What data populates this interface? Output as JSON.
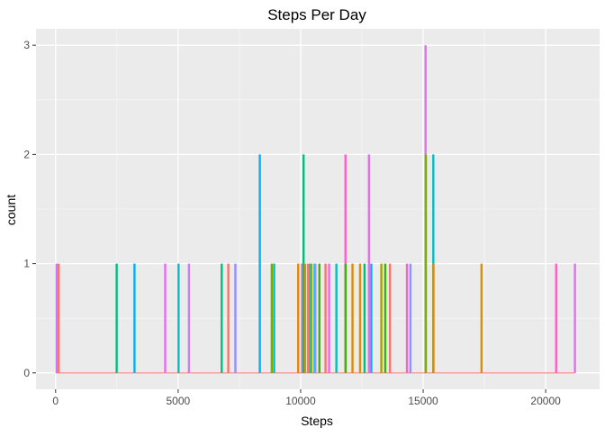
{
  "chart_data": {
    "type": "bar",
    "subtype": "histogram",
    "title": "Steps Per Day",
    "xlabel": "Steps",
    "ylabel": "count",
    "xlim": [
      -800,
      22200
    ],
    "ylim": [
      -0.15,
      3.15
    ],
    "x_ticks": [
      0,
      5000,
      10000,
      15000,
      20000
    ],
    "x_tick_labels": [
      "0",
      "5000",
      "10000",
      "15000",
      "20000"
    ],
    "y_ticks": [
      0,
      1,
      2,
      3
    ],
    "y_tick_labels": [
      "0",
      "1",
      "2",
      "3"
    ],
    "grid": true,
    "legend": "none",
    "baseline": {
      "from": 0,
      "to": 21200,
      "value": 0,
      "color": "#F8766D"
    },
    "bars": [
      {
        "x": 41,
        "count": 1,
        "color": "#C77CFF"
      },
      {
        "x": 126,
        "count": 1,
        "color": "#F8766D"
      },
      {
        "x": 2492,
        "count": 1,
        "color": "#00BF7D"
      },
      {
        "x": 3219,
        "count": 1,
        "color": "#00B0F6"
      },
      {
        "x": 4472,
        "count": 1,
        "color": "#E76BF3"
      },
      {
        "x": 5018,
        "count": 1,
        "color": "#00BFC4"
      },
      {
        "x": 5441,
        "count": 1,
        "color": "#C77CFF"
      },
      {
        "x": 6778,
        "count": 1,
        "color": "#00BF7D"
      },
      {
        "x": 7047,
        "count": 1,
        "color": "#F8766D"
      },
      {
        "x": 7336,
        "count": 1,
        "color": "#9590FF"
      },
      {
        "x": 8334,
        "count": 2,
        "color": "#00B0F6"
      },
      {
        "x": 8821,
        "count": 1,
        "color": "#7CAE00"
      },
      {
        "x": 8918,
        "count": 1,
        "color": "#00BFC4"
      },
      {
        "x": 9900,
        "count": 1,
        "color": "#E58700"
      },
      {
        "x": 10056,
        "count": 1,
        "color": "#FF61C3"
      },
      {
        "x": 10119,
        "count": 2,
        "color": "#00BF7D"
      },
      {
        "x": 10183,
        "count": 1,
        "color": "#E58700"
      },
      {
        "x": 10304,
        "count": 1,
        "color": "#F8766D"
      },
      {
        "x": 10395,
        "count": 1,
        "color": "#00BFC4"
      },
      {
        "x": 10439,
        "count": 1,
        "color": "#A3A500"
      },
      {
        "x": 10571,
        "count": 1,
        "color": "#00B0F6"
      },
      {
        "x": 10600,
        "count": 1,
        "color": "#9590FF"
      },
      {
        "x": 10765,
        "count": 1,
        "color": "#39B600"
      },
      {
        "x": 11015,
        "count": 1,
        "color": "#F8766D"
      },
      {
        "x": 11162,
        "count": 1,
        "color": "#E76BF3"
      },
      {
        "x": 11458,
        "count": 1,
        "color": "#00BFC4"
      },
      {
        "x": 11829,
        "count": 2,
        "color": "#FF61C3"
      },
      {
        "x": 11834,
        "count": 1,
        "color": "#39B600"
      },
      {
        "x": 12116,
        "count": 1,
        "color": "#E58700"
      },
      {
        "x": 12426,
        "count": 1,
        "color": "#D89000"
      },
      {
        "x": 12608,
        "count": 1,
        "color": "#00BF7D"
      },
      {
        "x": 12787,
        "count": 2,
        "color": "#E76BF3"
      },
      {
        "x": 12883,
        "count": 1,
        "color": "#00B0F6"
      },
      {
        "x": 13294,
        "count": 1,
        "color": "#A3A500"
      },
      {
        "x": 13452,
        "count": 1,
        "color": "#39B600"
      },
      {
        "x": 13646,
        "count": 1,
        "color": "#F8766D"
      },
      {
        "x": 14339,
        "count": 1,
        "color": "#FF61C3"
      },
      {
        "x": 14478,
        "count": 1,
        "color": "#9590FF"
      },
      {
        "x": 15098,
        "count": 3,
        "color": "#E76BF3"
      },
      {
        "x": 15110,
        "count": 2,
        "color": "#7CAE00"
      },
      {
        "x": 15414,
        "count": 2,
        "color": "#00BFC4"
      },
      {
        "x": 15420,
        "count": 1,
        "color": "#E58700"
      },
      {
        "x": 17382,
        "count": 1,
        "color": "#D89000"
      },
      {
        "x": 20427,
        "count": 1,
        "color": "#FF61C3"
      },
      {
        "x": 21194,
        "count": 1,
        "color": "#E76BF3"
      }
    ]
  }
}
